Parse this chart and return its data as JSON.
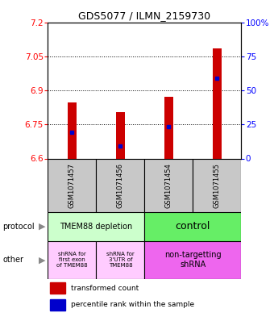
{
  "title": "GDS5077 / ILMN_2159730",
  "samples": [
    "GSM1071457",
    "GSM1071456",
    "GSM1071454",
    "GSM1071455"
  ],
  "bar_bottoms": [
    6.6,
    6.6,
    6.6,
    6.6
  ],
  "bar_tops": [
    6.845,
    6.805,
    6.87,
    7.085
  ],
  "blue_marks": [
    6.715,
    6.655,
    6.74,
    6.955
  ],
  "ylim": [
    6.6,
    7.2
  ],
  "yticks_left": [
    6.6,
    6.75,
    6.9,
    7.05,
    7.2
  ],
  "yticks_right": [
    0,
    25,
    50,
    75,
    100
  ],
  "ytick_labels_left": [
    "6.6",
    "6.75",
    "6.9",
    "7.05",
    "7.2"
  ],
  "ytick_labels_right": [
    "0",
    "25",
    "50",
    "75",
    "100%"
  ],
  "bar_color": "#cc0000",
  "blue_color": "#0000cc",
  "protocol_labels": [
    "TMEM88 depletion",
    "control"
  ],
  "protocol_colors": [
    "#ccffcc",
    "#66ee66"
  ],
  "other_labels_1": "shRNA for\nfirst exon\nof TMEM88",
  "other_labels_2": "shRNA for\n3'UTR of\nTMEM88",
  "other_labels_3": "non-targetting\nshRNA",
  "other_color_12": "#ffccff",
  "other_color_3": "#ee66ee",
  "legend_red": "transformed count",
  "legend_blue": "percentile rank within the sample",
  "bar_width": 0.18,
  "sample_label_color": "#c8c8c8",
  "title_fontsize": 9
}
